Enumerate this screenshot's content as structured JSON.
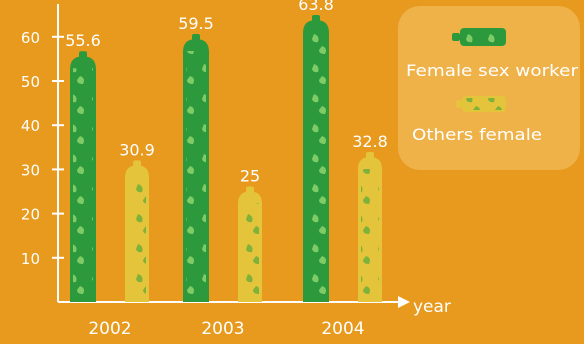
{
  "chart_data": {
    "type": "bar",
    "title": "",
    "xlabel": "year",
    "ylabel": "",
    "categories": [
      "2002",
      "2003",
      "2004"
    ],
    "ylim": [
      0,
      65
    ],
    "yticks": [
      10,
      20,
      30,
      40,
      50,
      60
    ],
    "ytick_labels": [
      "10",
      "20",
      "30",
      "40",
      "50",
      "60"
    ],
    "grid": false,
    "legend_position": "top-right",
    "series": [
      {
        "name": "Female sex worker",
        "values": [
          55.6,
          59.5,
          63.8
        ],
        "value_labels": [
          "55.6",
          "59.5",
          "63.8"
        ],
        "color": "#2C9A3C",
        "pattern_color": "#7FCB66"
      },
      {
        "name": "Others female",
        "values": [
          30.9,
          25,
          32.8
        ],
        "value_labels": [
          "30.9",
          "25",
          "32.8"
        ],
        "color": "#E4C43A",
        "pattern_color": "#7FB23A"
      }
    ],
    "background_color": "#E79A1E",
    "legend_background": "#F0B54D",
    "text_color": "#FFFFFF"
  }
}
